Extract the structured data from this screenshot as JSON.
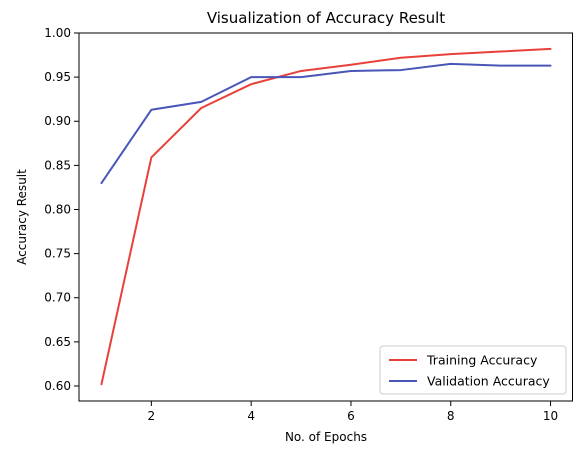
{
  "chart_data": {
    "type": "line",
    "title": "Visualization of Accuracy Result",
    "xlabel": "No. of Epochs",
    "ylabel": "Accuracy Result",
    "x": [
      1,
      2,
      3,
      4,
      5,
      6,
      7,
      8,
      9,
      10
    ],
    "xlim": [
      0.55,
      10.45
    ],
    "ylim": [
      0.583,
      1.0
    ],
    "xticks": [
      2,
      4,
      6,
      8,
      10
    ],
    "yticks": [
      0.6,
      0.65,
      0.7,
      0.75,
      0.8,
      0.85,
      0.9,
      0.95,
      1.0
    ],
    "ytick_labels": [
      "0.60",
      "0.65",
      "0.70",
      "0.75",
      "0.80",
      "0.85",
      "0.90",
      "0.95",
      "1.00"
    ],
    "grid": false,
    "legend_position": "bottom-right",
    "series": [
      {
        "name": "Training Accuracy",
        "color": "#e8413a",
        "values": [
          0.602,
          0.859,
          0.915,
          0.942,
          0.957,
          0.964,
          0.972,
          0.976,
          0.979,
          0.982
        ]
      },
      {
        "name": "Validation Accuracy",
        "color": "#4a55b8",
        "values": [
          0.83,
          0.913,
          0.922,
          0.95,
          0.95,
          0.957,
          0.958,
          0.965,
          0.963,
          0.963
        ]
      }
    ]
  }
}
